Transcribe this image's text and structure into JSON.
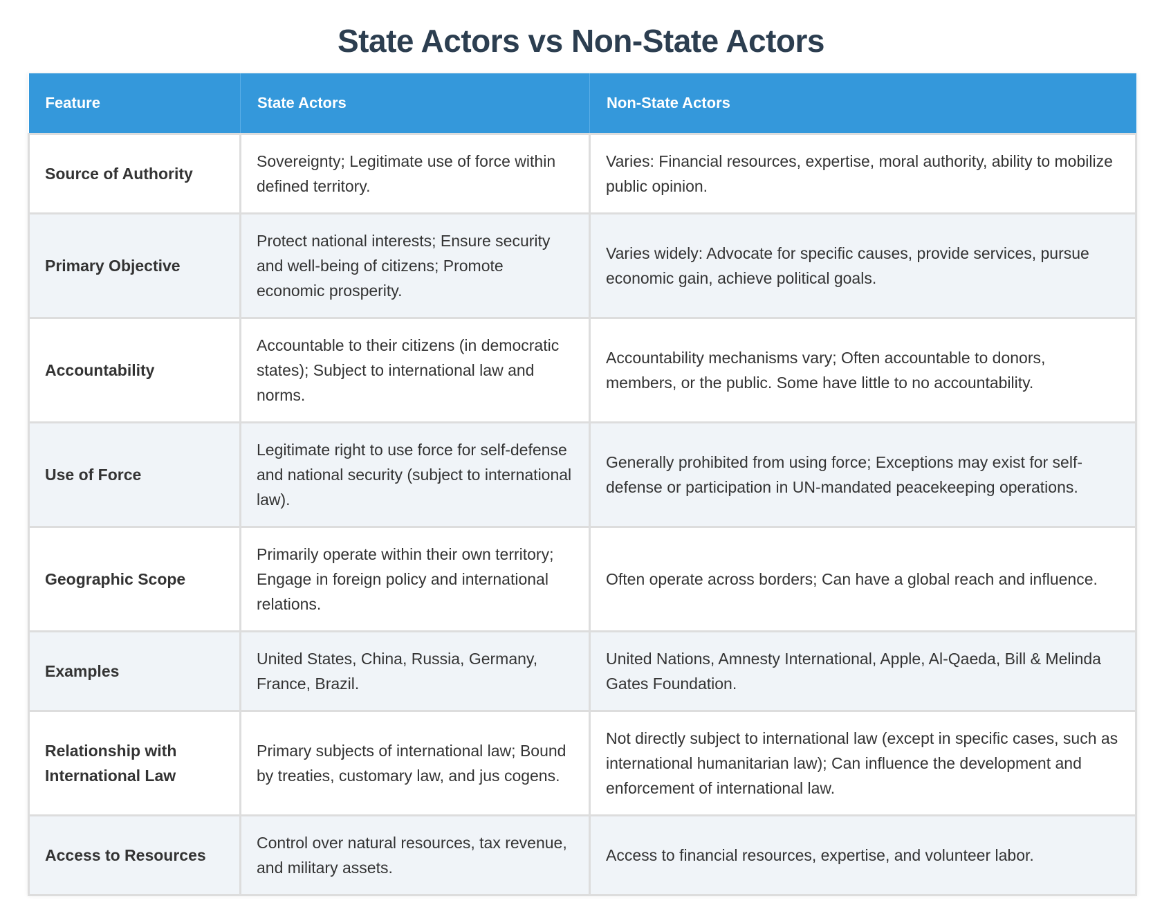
{
  "title": "State Actors vs Non-State Actors",
  "colors": {
    "title": "#2c3e50",
    "header_bg": "#3498db",
    "header_text": "#ffffff",
    "row_alt_bg": "#f0f4f8",
    "border": "#dddddd"
  },
  "table": {
    "headers": [
      "Feature",
      "State Actors",
      "Non-State Actors"
    ],
    "rows": [
      {
        "feature": "Source of Authority",
        "state": "Sovereignty; Legitimate use of force within defined territory.",
        "non_state": "Varies: Financial resources, expertise, moral authority, ability to mobilize public opinion."
      },
      {
        "feature": "Primary Objective",
        "state": "Protect national interests; Ensure security and well-being of citizens; Promote economic prosperity.",
        "non_state": "Varies widely: Advocate for specific causes, provide services, pursue economic gain, achieve political goals."
      },
      {
        "feature": "Accountability",
        "state": "Accountable to their citizens (in democratic states); Subject to international law and norms.",
        "non_state": "Accountability mechanisms vary; Often accountable to donors, members, or the public. Some have little to no accountability."
      },
      {
        "feature": "Use of Force",
        "state": "Legitimate right to use force for self-defense and national security (subject to international law).",
        "non_state": "Generally prohibited from using force; Exceptions may exist for self-defense or participation in UN-mandated peacekeeping operations."
      },
      {
        "feature": "Geographic Scope",
        "state": "Primarily operate within their own territory; Engage in foreign policy and international relations.",
        "non_state": "Often operate across borders; Can have a global reach and influence."
      },
      {
        "feature": "Examples",
        "state": "United States, China, Russia, Germany, France, Brazil.",
        "non_state": "United Nations, Amnesty International, Apple, Al-Qaeda, Bill & Melinda Gates Foundation."
      },
      {
        "feature": "Relationship with International Law",
        "state": "Primary subjects of international law; Bound by treaties, customary law, and jus cogens.",
        "non_state": "Not directly subject to international law (except in specific cases, such as international humanitarian law); Can influence the development and enforcement of international law."
      },
      {
        "feature": "Access to Resources",
        "state": "Control over natural resources, tax revenue, and military assets.",
        "non_state": "Access to financial resources, expertise, and volunteer labor."
      }
    ]
  }
}
